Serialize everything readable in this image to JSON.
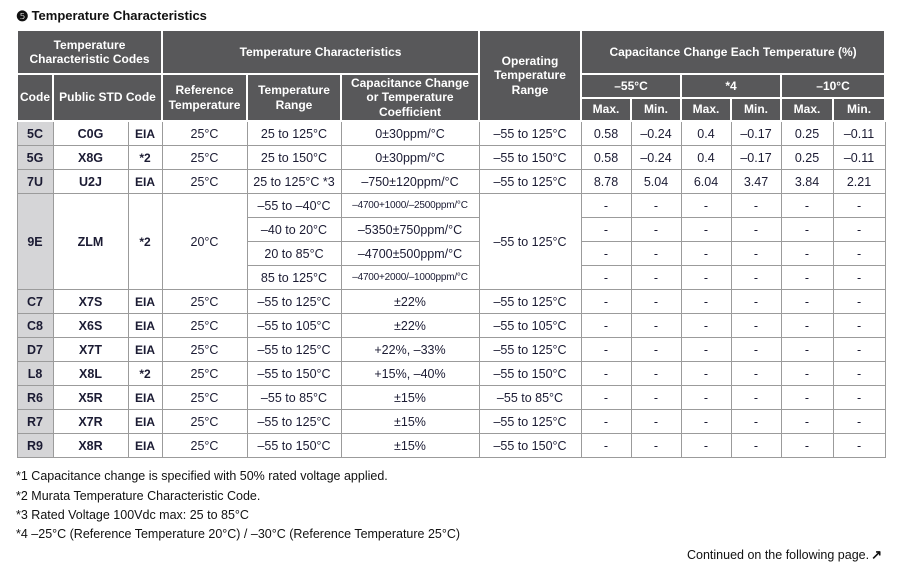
{
  "title_bullet": "❺",
  "title": "Temperature Characteristics",
  "header": {
    "temp_char_codes": "Temperature Characteristic Codes",
    "temp_characteristics": "Temperature Characteristics",
    "operating_temp_range": "Operating Temperature Range",
    "cap_change_each_temp": "Capacitance Change Each Temperature (%)",
    "code": "Code",
    "public_std_code": "Public STD Code",
    "reference_temperature": "Reference Temperature",
    "temperature_range": "Temperature Range",
    "cap_change_or_coeff": "Capacitance Change or Temperature Coefficient",
    "temp_groups": {
      "0": "–55°C",
      "1": "*4",
      "2": "–10°C"
    },
    "max_label": "Max.",
    "min_label": "Min."
  },
  "body": [
    [
      {
        "t": "5C",
        "c": "code",
        "n": "code-cell"
      },
      {
        "t": "C0G",
        "c": "std"
      },
      {
        "t": "EIA",
        "c": "org"
      },
      {
        "t": "25°C"
      },
      {
        "t": "25 to 125°C"
      },
      {
        "t": "0±30ppm/°C"
      },
      {
        "t": "–55 to 125°C"
      },
      {
        "t": "0.58"
      },
      {
        "t": "–0.24"
      },
      {
        "t": "0.4"
      },
      {
        "t": "–0.17"
      },
      {
        "t": "0.25"
      },
      {
        "t": "–0.11"
      }
    ],
    [
      {
        "t": "5G",
        "c": "code",
        "n": "code-cell"
      },
      {
        "t": "X8G",
        "c": "std"
      },
      {
        "t": "*2",
        "c": "org"
      },
      {
        "t": "25°C"
      },
      {
        "t": "25 to 150°C"
      },
      {
        "t": "0±30ppm/°C"
      },
      {
        "t": "–55 to 150°C"
      },
      {
        "t": "0.58"
      },
      {
        "t": "–0.24"
      },
      {
        "t": "0.4"
      },
      {
        "t": "–0.17"
      },
      {
        "t": "0.25"
      },
      {
        "t": "–0.11"
      }
    ],
    [
      {
        "t": "7U",
        "c": "code",
        "n": "code-cell"
      },
      {
        "t": "U2J",
        "c": "std"
      },
      {
        "t": "EIA",
        "c": "org"
      },
      {
        "t": "25°C"
      },
      {
        "t": "25 to 125°C *3"
      },
      {
        "t": "–750±120ppm/°C"
      },
      {
        "t": "–55 to 125°C"
      },
      {
        "t": "8.78"
      },
      {
        "t": "5.04"
      },
      {
        "t": "6.04"
      },
      {
        "t": "3.47"
      },
      {
        "t": "3.84"
      },
      {
        "t": "2.21"
      }
    ],
    [
      {
        "t": "9E",
        "c": "code",
        "n": "code-cell",
        "rs": 4
      },
      {
        "t": "ZLM",
        "c": "std",
        "rs": 4
      },
      {
        "t": "*2",
        "c": "org",
        "rs": 4
      },
      {
        "t": "20°C",
        "rs": 4
      },
      {
        "t": "–55 to –40°C"
      },
      {
        "t": "–4700+1000/–2500ppm/°C",
        "c": "small"
      },
      {
        "t": "–55 to 125°C",
        "rs": 4
      },
      {
        "t": "-"
      },
      {
        "t": "-"
      },
      {
        "t": "-"
      },
      {
        "t": "-"
      },
      {
        "t": "-"
      },
      {
        "t": "-"
      }
    ],
    [
      {
        "t": "–40 to 20°C"
      },
      {
        "t": "–5350±750ppm/°C"
      },
      {
        "t": "-"
      },
      {
        "t": "-"
      },
      {
        "t": "-"
      },
      {
        "t": "-"
      },
      {
        "t": "-"
      },
      {
        "t": "-"
      }
    ],
    [
      {
        "t": "20 to 85°C"
      },
      {
        "t": "–4700±500ppm/°C"
      },
      {
        "t": "-"
      },
      {
        "t": "-"
      },
      {
        "t": "-"
      },
      {
        "t": "-"
      },
      {
        "t": "-"
      },
      {
        "t": "-"
      }
    ],
    [
      {
        "t": "85 to 125°C"
      },
      {
        "t": "–4700+2000/–1000ppm/°C",
        "c": "small"
      },
      {
        "t": "-"
      },
      {
        "t": "-"
      },
      {
        "t": "-"
      },
      {
        "t": "-"
      },
      {
        "t": "-"
      },
      {
        "t": "-"
      }
    ],
    [
      {
        "t": "C7",
        "c": "code",
        "n": "code-cell"
      },
      {
        "t": "X7S",
        "c": "std"
      },
      {
        "t": "EIA",
        "c": "org"
      },
      {
        "t": "25°C"
      },
      {
        "t": "–55 to 125°C"
      },
      {
        "t": "±22%"
      },
      {
        "t": "–55 to 125°C"
      },
      {
        "t": "-"
      },
      {
        "t": "-"
      },
      {
        "t": "-"
      },
      {
        "t": "-"
      },
      {
        "t": "-"
      },
      {
        "t": "-"
      }
    ],
    [
      {
        "t": "C8",
        "c": "code",
        "n": "code-cell"
      },
      {
        "t": "X6S",
        "c": "std"
      },
      {
        "t": "EIA",
        "c": "org"
      },
      {
        "t": "25°C"
      },
      {
        "t": "–55 to 105°C"
      },
      {
        "t": "±22%"
      },
      {
        "t": "–55 to 105°C"
      },
      {
        "t": "-"
      },
      {
        "t": "-"
      },
      {
        "t": "-"
      },
      {
        "t": "-"
      },
      {
        "t": "-"
      },
      {
        "t": "-"
      }
    ],
    [
      {
        "t": "D7",
        "c": "code",
        "n": "code-cell"
      },
      {
        "t": "X7T",
        "c": "std"
      },
      {
        "t": "EIA",
        "c": "org"
      },
      {
        "t": "25°C"
      },
      {
        "t": "–55 to 125°C"
      },
      {
        "t": "+22%, –33%"
      },
      {
        "t": "–55 to 125°C"
      },
      {
        "t": "-"
      },
      {
        "t": "-"
      },
      {
        "t": "-"
      },
      {
        "t": "-"
      },
      {
        "t": "-"
      },
      {
        "t": "-"
      }
    ],
    [
      {
        "t": "L8",
        "c": "code",
        "n": "code-cell"
      },
      {
        "t": "X8L",
        "c": "std"
      },
      {
        "t": "*2",
        "c": "org"
      },
      {
        "t": "25°C"
      },
      {
        "t": "–55 to 150°C"
      },
      {
        "t": "+15%, –40%"
      },
      {
        "t": "–55 to 150°C"
      },
      {
        "t": "-"
      },
      {
        "t": "-"
      },
      {
        "t": "-"
      },
      {
        "t": "-"
      },
      {
        "t": "-"
      },
      {
        "t": "-"
      }
    ],
    [
      {
        "t": "R6",
        "c": "code",
        "n": "code-cell"
      },
      {
        "t": "X5R",
        "c": "std"
      },
      {
        "t": "EIA",
        "c": "org"
      },
      {
        "t": "25°C"
      },
      {
        "t": "–55 to 85°C"
      },
      {
        "t": "±15%"
      },
      {
        "t": "–55 to 85°C"
      },
      {
        "t": "-"
      },
      {
        "t": "-"
      },
      {
        "t": "-"
      },
      {
        "t": "-"
      },
      {
        "t": "-"
      },
      {
        "t": "-"
      }
    ],
    [
      {
        "t": "R7",
        "c": "code",
        "n": "code-cell"
      },
      {
        "t": "X7R",
        "c": "std"
      },
      {
        "t": "EIA",
        "c": "org"
      },
      {
        "t": "25°C"
      },
      {
        "t": "–55 to 125°C"
      },
      {
        "t": "±15%"
      },
      {
        "t": "–55 to 125°C"
      },
      {
        "t": "-"
      },
      {
        "t": "-"
      },
      {
        "t": "-"
      },
      {
        "t": "-"
      },
      {
        "t": "-"
      },
      {
        "t": "-"
      }
    ],
    [
      {
        "t": "R9",
        "c": "code",
        "n": "code-cell"
      },
      {
        "t": "X8R",
        "c": "std"
      },
      {
        "t": "EIA",
        "c": "org"
      },
      {
        "t": "25°C"
      },
      {
        "t": "–55 to 150°C"
      },
      {
        "t": "±15%"
      },
      {
        "t": "–55 to 150°C"
      },
      {
        "t": "-"
      },
      {
        "t": "-"
      },
      {
        "t": "-"
      },
      {
        "t": "-"
      },
      {
        "t": "-"
      },
      {
        "t": "-"
      }
    ]
  ],
  "footnotes": [
    "*1 Capacitance change is specified with 50% rated voltage applied.",
    "*2 Murata Temperature Characteristic Code.",
    "*3 Rated Voltage 100Vdc max: 25 to 85°C",
    "*4 –25°C (Reference Temperature 20°C) / –30°C (Reference Temperature 25°C)"
  ],
  "continued_note": "Continued on the following page.",
  "continued_arrow": "↗",
  "colors": {
    "header_bg": "#58585a",
    "code_column_bg": "#d5d5d7",
    "body_border": "#9b9b9b",
    "text": "#1b1b33"
  }
}
